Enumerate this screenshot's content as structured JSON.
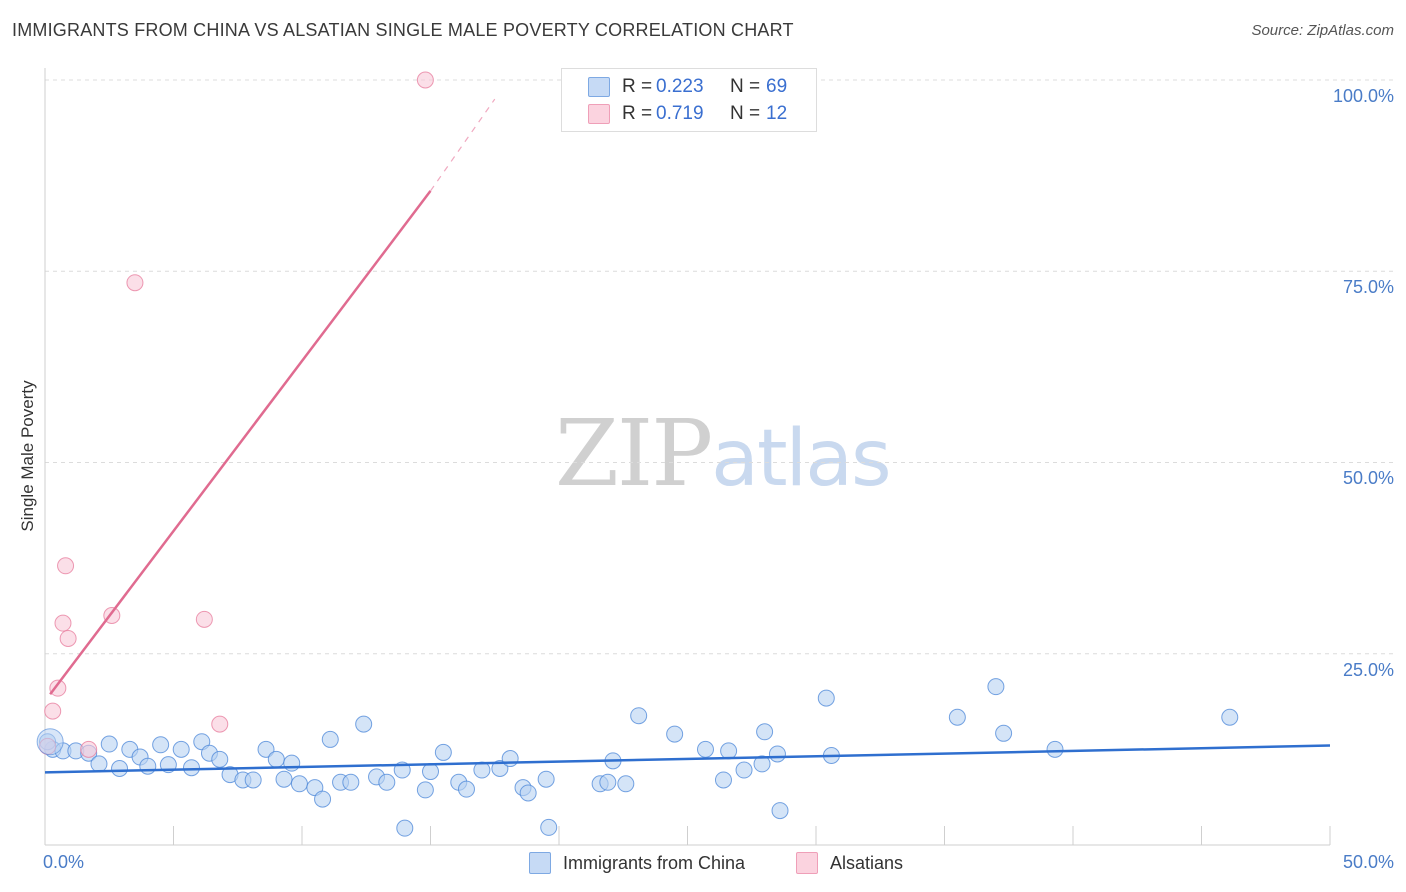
{
  "header": {
    "title": "IMMIGRANTS FROM CHINA VS ALSATIAN SINGLE MALE POVERTY CORRELATION CHART",
    "source": "Source: ZipAtlas.com"
  },
  "watermark": {
    "zip": "ZIP",
    "atlas": "atlas"
  },
  "legend_top": {
    "rows": [
      {
        "r_label": "R =",
        "r_value": "0.223",
        "n_label": "N =",
        "n_value": "69",
        "color": "#aecbf0"
      },
      {
        "r_label": "R =",
        "r_value": "0.719",
        "n_label": "N =",
        "n_value": "12",
        "color": "#f8c2d2"
      }
    ]
  },
  "chart_data": {
    "type": "scatter",
    "title": "IMMIGRANTS FROM CHINA VS ALSATIAN SINGLE MALE POVERTY CORRELATION CHART",
    "xlabel": "",
    "ylabel": "Single Male Poverty",
    "xlim": [
      0,
      50
    ],
    "ylim": [
      0,
      100
    ],
    "x_tick_labels": [
      "0.0%",
      "50.0%"
    ],
    "y_tick_labels": [
      "25.0%",
      "50.0%",
      "75.0%",
      "100.0%"
    ],
    "y_tick_values": [
      25,
      50,
      75,
      100
    ],
    "grid": true,
    "legend_position": "bottom",
    "series": [
      {
        "name": "Immigrants from China",
        "color": "#4a86d8",
        "fill": "#b8d2f2",
        "trend": {
          "x": [
            0,
            50
          ],
          "y": [
            9.5,
            13.0
          ],
          "color": "#2f6fcf"
        },
        "points": [
          [
            0.3,
            12.5
          ],
          [
            0.7,
            12.3
          ],
          [
            1.2,
            12.3
          ],
          [
            1.7,
            12.0
          ],
          [
            2.1,
            10.6
          ],
          [
            2.5,
            13.2
          ],
          [
            2.9,
            10.0
          ],
          [
            3.3,
            12.5
          ],
          [
            3.7,
            11.5
          ],
          [
            4.0,
            10.3
          ],
          [
            4.5,
            13.1
          ],
          [
            4.8,
            10.5
          ],
          [
            5.3,
            12.5
          ],
          [
            5.7,
            10.1
          ],
          [
            6.1,
            13.5
          ],
          [
            6.4,
            12.0
          ],
          [
            6.8,
            11.2
          ],
          [
            7.2,
            9.2
          ],
          [
            7.7,
            8.5
          ],
          [
            8.1,
            8.5
          ],
          [
            8.6,
            12.5
          ],
          [
            9.0,
            11.2
          ],
          [
            9.3,
            8.6
          ],
          [
            9.6,
            10.7
          ],
          [
            9.9,
            8.0
          ],
          [
            10.5,
            7.5
          ],
          [
            10.8,
            6.0
          ],
          [
            11.1,
            13.8
          ],
          [
            11.5,
            8.2
          ],
          [
            11.9,
            8.2
          ],
          [
            12.4,
            15.8
          ],
          [
            12.9,
            8.9
          ],
          [
            13.3,
            8.2
          ],
          [
            13.9,
            9.8
          ],
          [
            14.0,
            2.2
          ],
          [
            14.8,
            7.2
          ],
          [
            15.0,
            9.6
          ],
          [
            15.5,
            12.1
          ],
          [
            16.1,
            8.2
          ],
          [
            16.4,
            7.3
          ],
          [
            17.0,
            9.8
          ],
          [
            17.7,
            10.0
          ],
          [
            18.1,
            11.3
          ],
          [
            18.6,
            7.5
          ],
          [
            18.8,
            6.8
          ],
          [
            19.5,
            8.6
          ],
          [
            19.6,
            2.3
          ],
          [
            21.6,
            8.0
          ],
          [
            21.9,
            8.2
          ],
          [
            22.1,
            11.0
          ],
          [
            22.6,
            8.0
          ],
          [
            23.1,
            16.9
          ],
          [
            24.5,
            14.5
          ],
          [
            25.7,
            12.5
          ],
          [
            26.4,
            8.5
          ],
          [
            26.6,
            12.3
          ],
          [
            27.2,
            9.8
          ],
          [
            27.9,
            10.6
          ],
          [
            28.0,
            14.8
          ],
          [
            28.5,
            11.9
          ],
          [
            28.6,
            4.5
          ],
          [
            30.4,
            19.2
          ],
          [
            30.6,
            11.7
          ],
          [
            35.5,
            16.7
          ],
          [
            37.0,
            20.7
          ],
          [
            37.3,
            14.6
          ],
          [
            39.3,
            12.5
          ],
          [
            46.1,
            16.7
          ],
          [
            0.1,
            13.5
          ]
        ]
      },
      {
        "name": "Alsatians",
        "color": "#e77a9b",
        "fill": "#f9cad8",
        "trend": {
          "x": [
            0.2,
            15
          ],
          "y": [
            19.7,
            85.5
          ],
          "dashed_to": {
            "x": 17.5,
            "y": 97.5
          },
          "color": "#e06b90"
        },
        "points": [
          [
            0.1,
            12.9
          ],
          [
            0.3,
            17.5
          ],
          [
            0.5,
            20.5
          ],
          [
            0.7,
            29.0
          ],
          [
            0.8,
            36.5
          ],
          [
            0.9,
            27.0
          ],
          [
            1.7,
            12.5
          ],
          [
            2.6,
            30.0
          ],
          [
            3.5,
            73.5
          ],
          [
            6.2,
            29.5
          ],
          [
            6.8,
            15.8
          ],
          [
            14.8,
            100.0
          ]
        ]
      }
    ]
  }
}
